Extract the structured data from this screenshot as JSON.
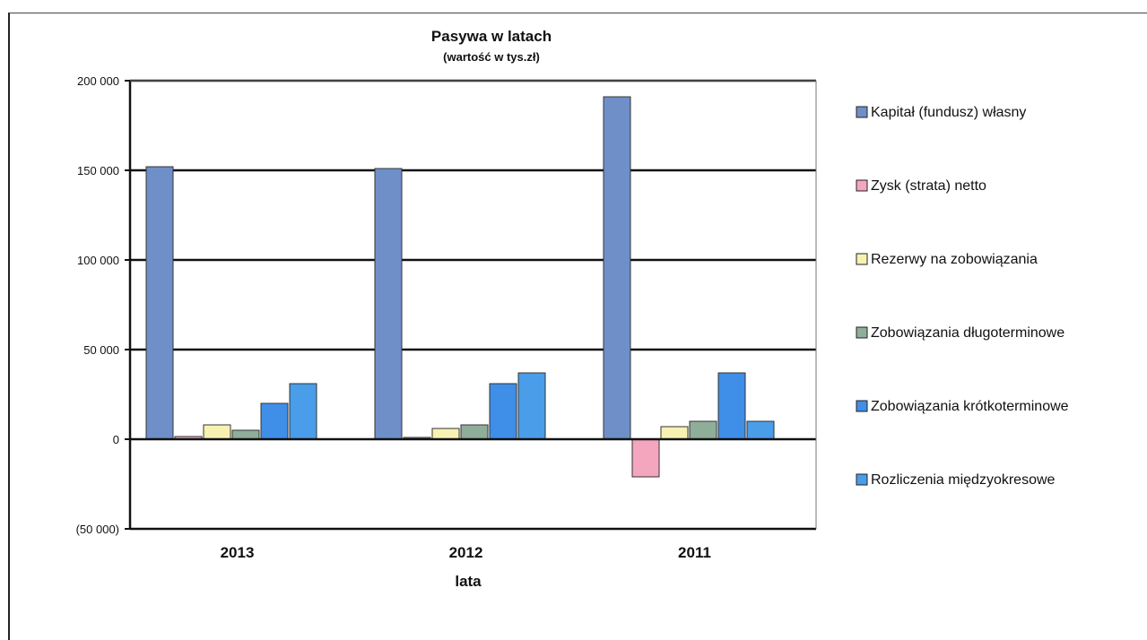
{
  "chart_data": {
    "type": "bar",
    "title": "Pasywa w latach",
    "subtitle": "(wartość w tys.zł)",
    "xlabel": "lata",
    "ylabel": "",
    "categories": [
      "2013",
      "2012",
      "2011"
    ],
    "ylim": [
      -50000,
      200000
    ],
    "yticks": [
      -50000,
      0,
      50000,
      100000,
      150000,
      200000
    ],
    "ytick_labels": [
      "(50 000)",
      "0",
      "50 000",
      "100 000",
      "150 000",
      "200 000"
    ],
    "grid": true,
    "legend_position": "right",
    "series": [
      {
        "name": "Kapitał (fundusz) własny",
        "values": [
          152000,
          151000,
          191000
        ],
        "color": "#6f8fc8"
      },
      {
        "name": "Zysk (strata) netto",
        "values": [
          1500,
          1000,
          -21000
        ],
        "color": "#f4a6bf"
      },
      {
        "name": "Rezerwy na zobowiązania",
        "values": [
          8000,
          6000,
          7000
        ],
        "color": "#f7f2b2"
      },
      {
        "name": "Zobowiązania długoterminowe",
        "values": [
          5000,
          8000,
          10000
        ],
        "color": "#8fae9a"
      },
      {
        "name": "Zobowiązania krótkoterminowe",
        "values": [
          20000,
          31000,
          37000
        ],
        "color": "#3f8ee8"
      },
      {
        "name": "Rozliczenia międzyokresowe",
        "values": [
          31000,
          37000,
          10000
        ],
        "color": "#4a9de8"
      }
    ]
  }
}
